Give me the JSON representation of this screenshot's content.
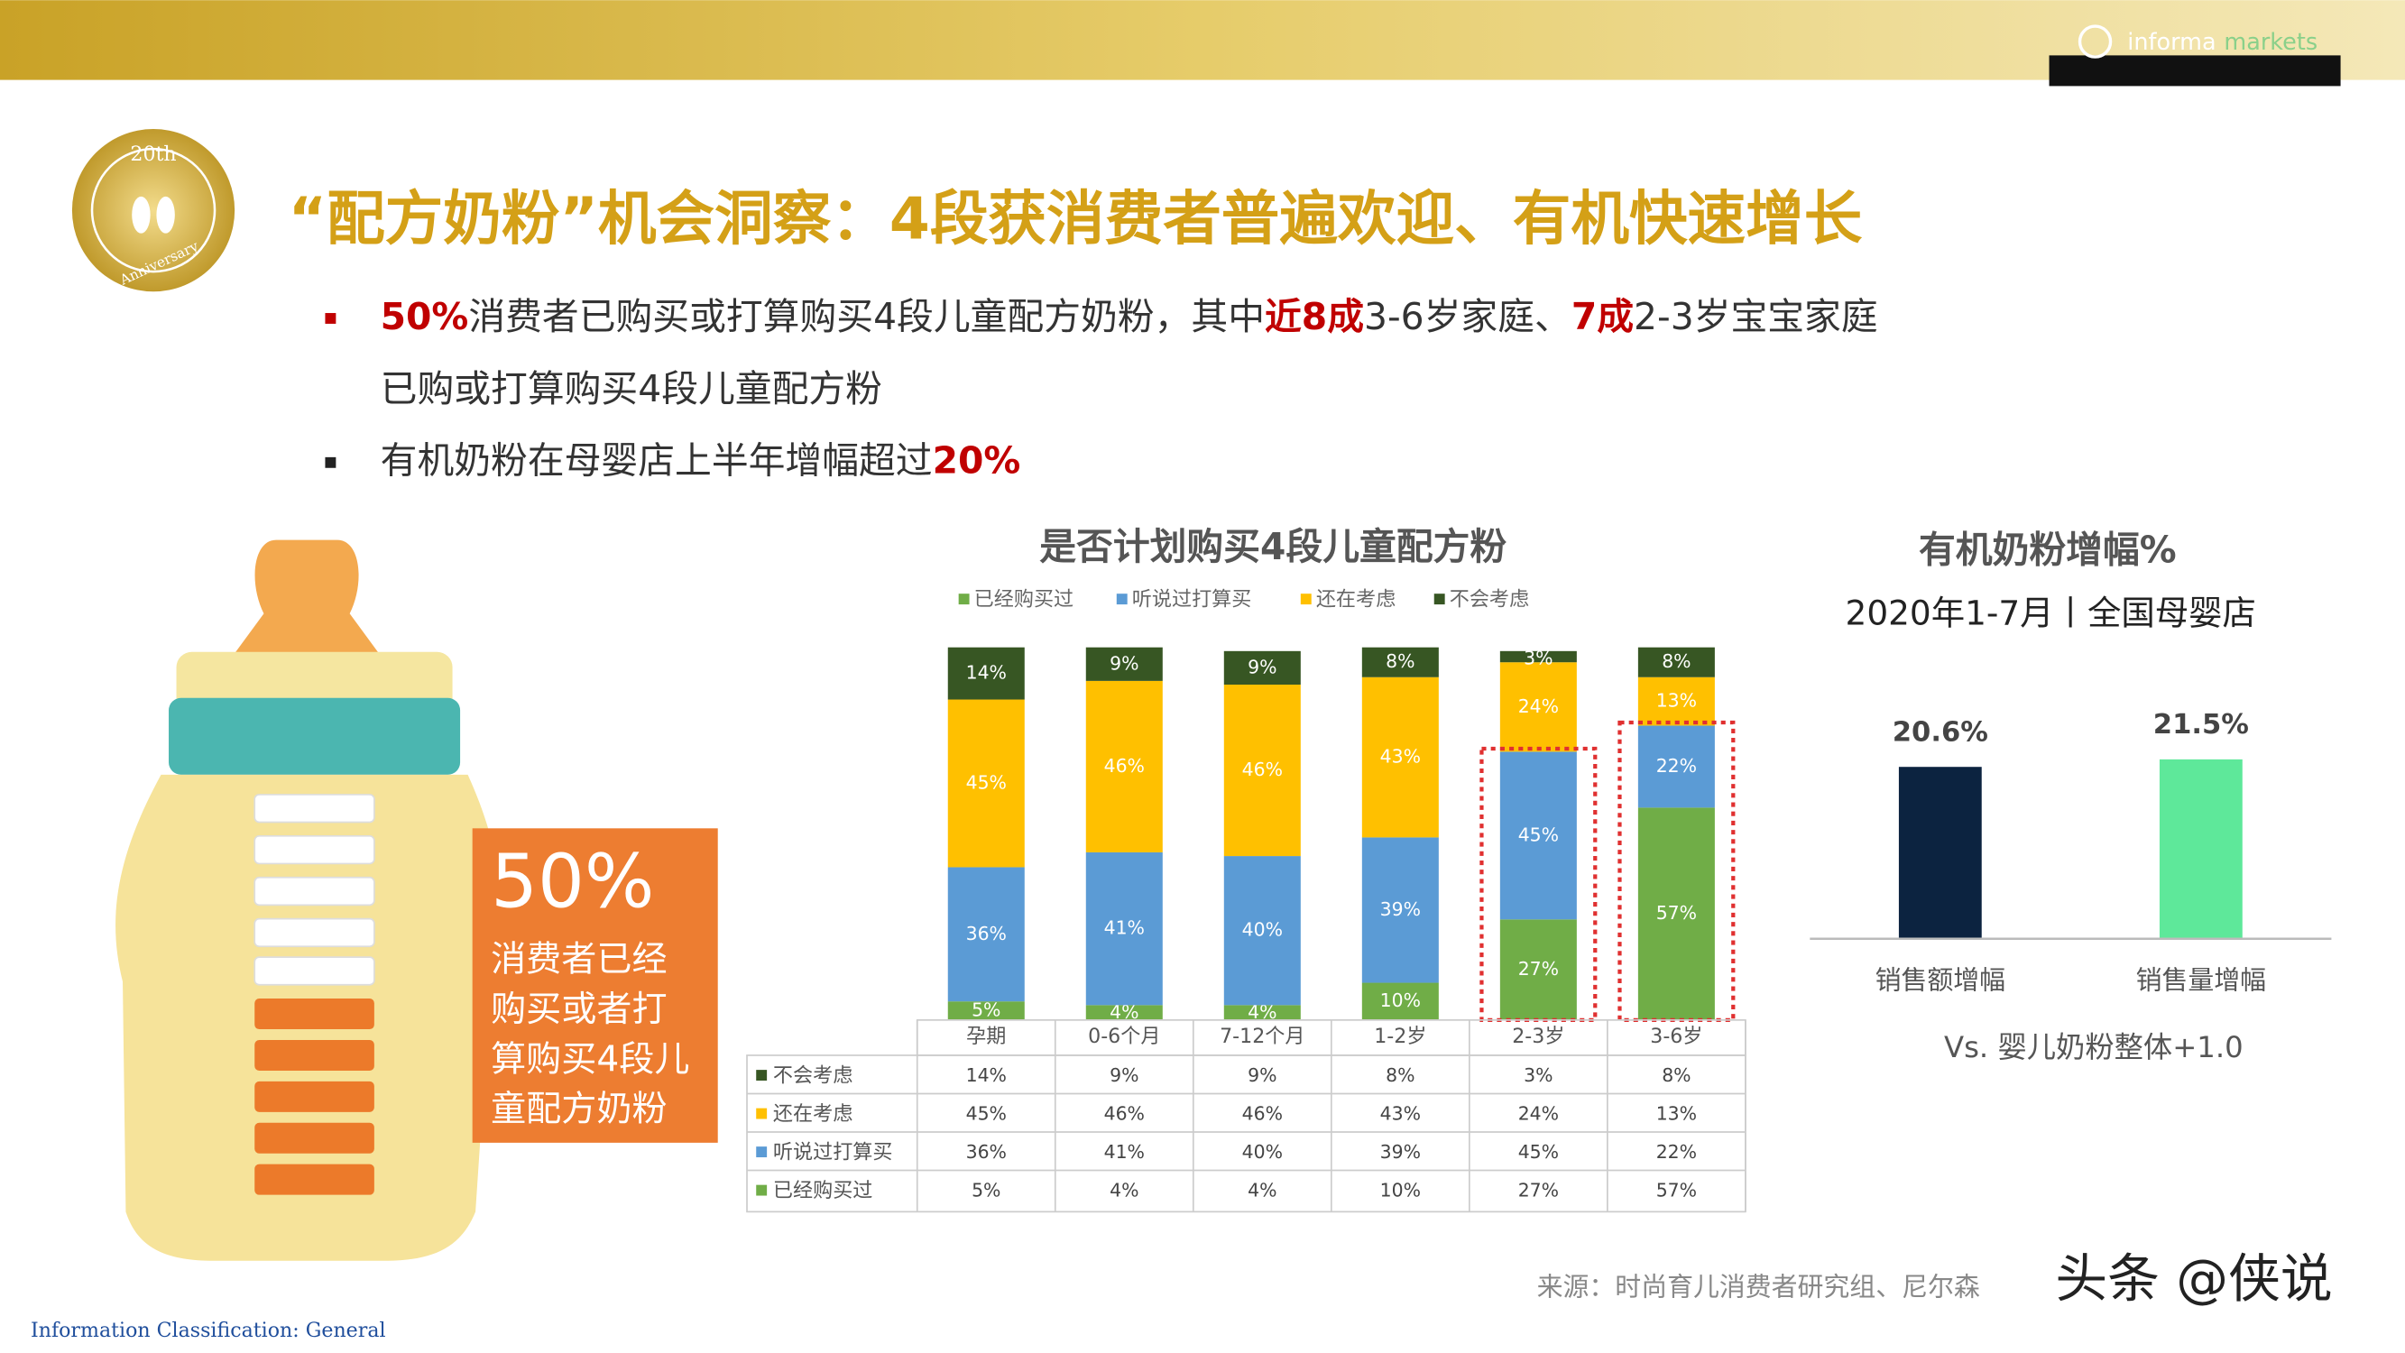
{
  "header": {
    "logo_main": "informa",
    "logo_accent": "markets"
  },
  "badge": {
    "top": "20th",
    "bottom": "Anniversary"
  },
  "title": "“配方奶粉”机会洞察：4段获消费者普遍欢迎、有机快速增长",
  "bullets": [
    {
      "lines": [
        [
          {
            "text": "50%",
            "color": "#c00000"
          },
          {
            "text": "消费者已购买或打算购买4段儿童配方奶粉，其中"
          },
          {
            "text": "近8成",
            "color": "#c00000"
          },
          {
            "text": "3-6岁家庭、"
          },
          {
            "text": "7成",
            "color": "#c00000"
          },
          {
            "text": "2-3岁宝宝家庭"
          }
        ],
        [
          {
            "text": "已购或打算购买4段儿童配方粉"
          }
        ]
      ]
    },
    {
      "lines": [
        [
          {
            "text": "有机奶粉在母婴店上半年增幅超过"
          },
          {
            "text": "20%",
            "color": "#c00000"
          }
        ]
      ]
    }
  ],
  "callout": {
    "value": "50%",
    "lines": [
      "消费者已经",
      "购买或者打",
      "算购买4段儿",
      "童配方奶粉"
    ]
  },
  "chart_data": [
    {
      "type": "stacked-bar",
      "title": "是否计划购买4段儿童配方粉",
      "categories": [
        "孕期",
        "0-6个月",
        "7-12个月",
        "1-2岁",
        "2-3岁",
        "3-6岁"
      ],
      "series": [
        {
          "name": "已经购买过",
          "color": "#70ad47",
          "values": [
            5,
            4,
            4,
            10,
            27,
            57
          ],
          "value_labels": [
            "5%",
            "4%",
            "4%",
            "10%",
            "27%",
            "57%"
          ]
        },
        {
          "name": "听说过打算买",
          "color": "#5b9bd5",
          "values": [
            36,
            41,
            40,
            39,
            45,
            22
          ],
          "value_labels": [
            "36%",
            "41%",
            "40%",
            "39%",
            "45%",
            "22%"
          ]
        },
        {
          "name": "还在考虑",
          "color": "#ffc000",
          "values": [
            45,
            46,
            46,
            43,
            24,
            13
          ],
          "value_labels": [
            "45%",
            "46%",
            "46%",
            "43%",
            "24%",
            "13%"
          ]
        },
        {
          "name": "不会考虑",
          "color": "#375623",
          "values": [
            14,
            9,
            9,
            8,
            3,
            8
          ],
          "value_labels": [
            "14%",
            "9%",
            "9%",
            "8%",
            "3%",
            "8%"
          ]
        }
      ],
      "ylim": [
        0,
        100
      ],
      "highlight": [
        4,
        5
      ]
    },
    {
      "type": "bar",
      "title": "有机奶粉增幅%",
      "subtitle": "2020年1-7月丨全国母婴店",
      "categories": [
        "销售额增幅",
        "销售量增幅"
      ],
      "values": [
        20.6,
        21.5
      ],
      "value_labels": [
        "20.6%",
        "21.5%"
      ],
      "colors": [
        "#0c2340",
        "#5ee89a"
      ],
      "ylim": [
        0,
        25
      ],
      "annotation": "Vs. 婴儿奶粉整体+1.0"
    }
  ],
  "source": "来源：时尚育儿消费者研究组、尼尔森",
  "watermark": "头条 @侠说",
  "footer": "Information Classification: General"
}
